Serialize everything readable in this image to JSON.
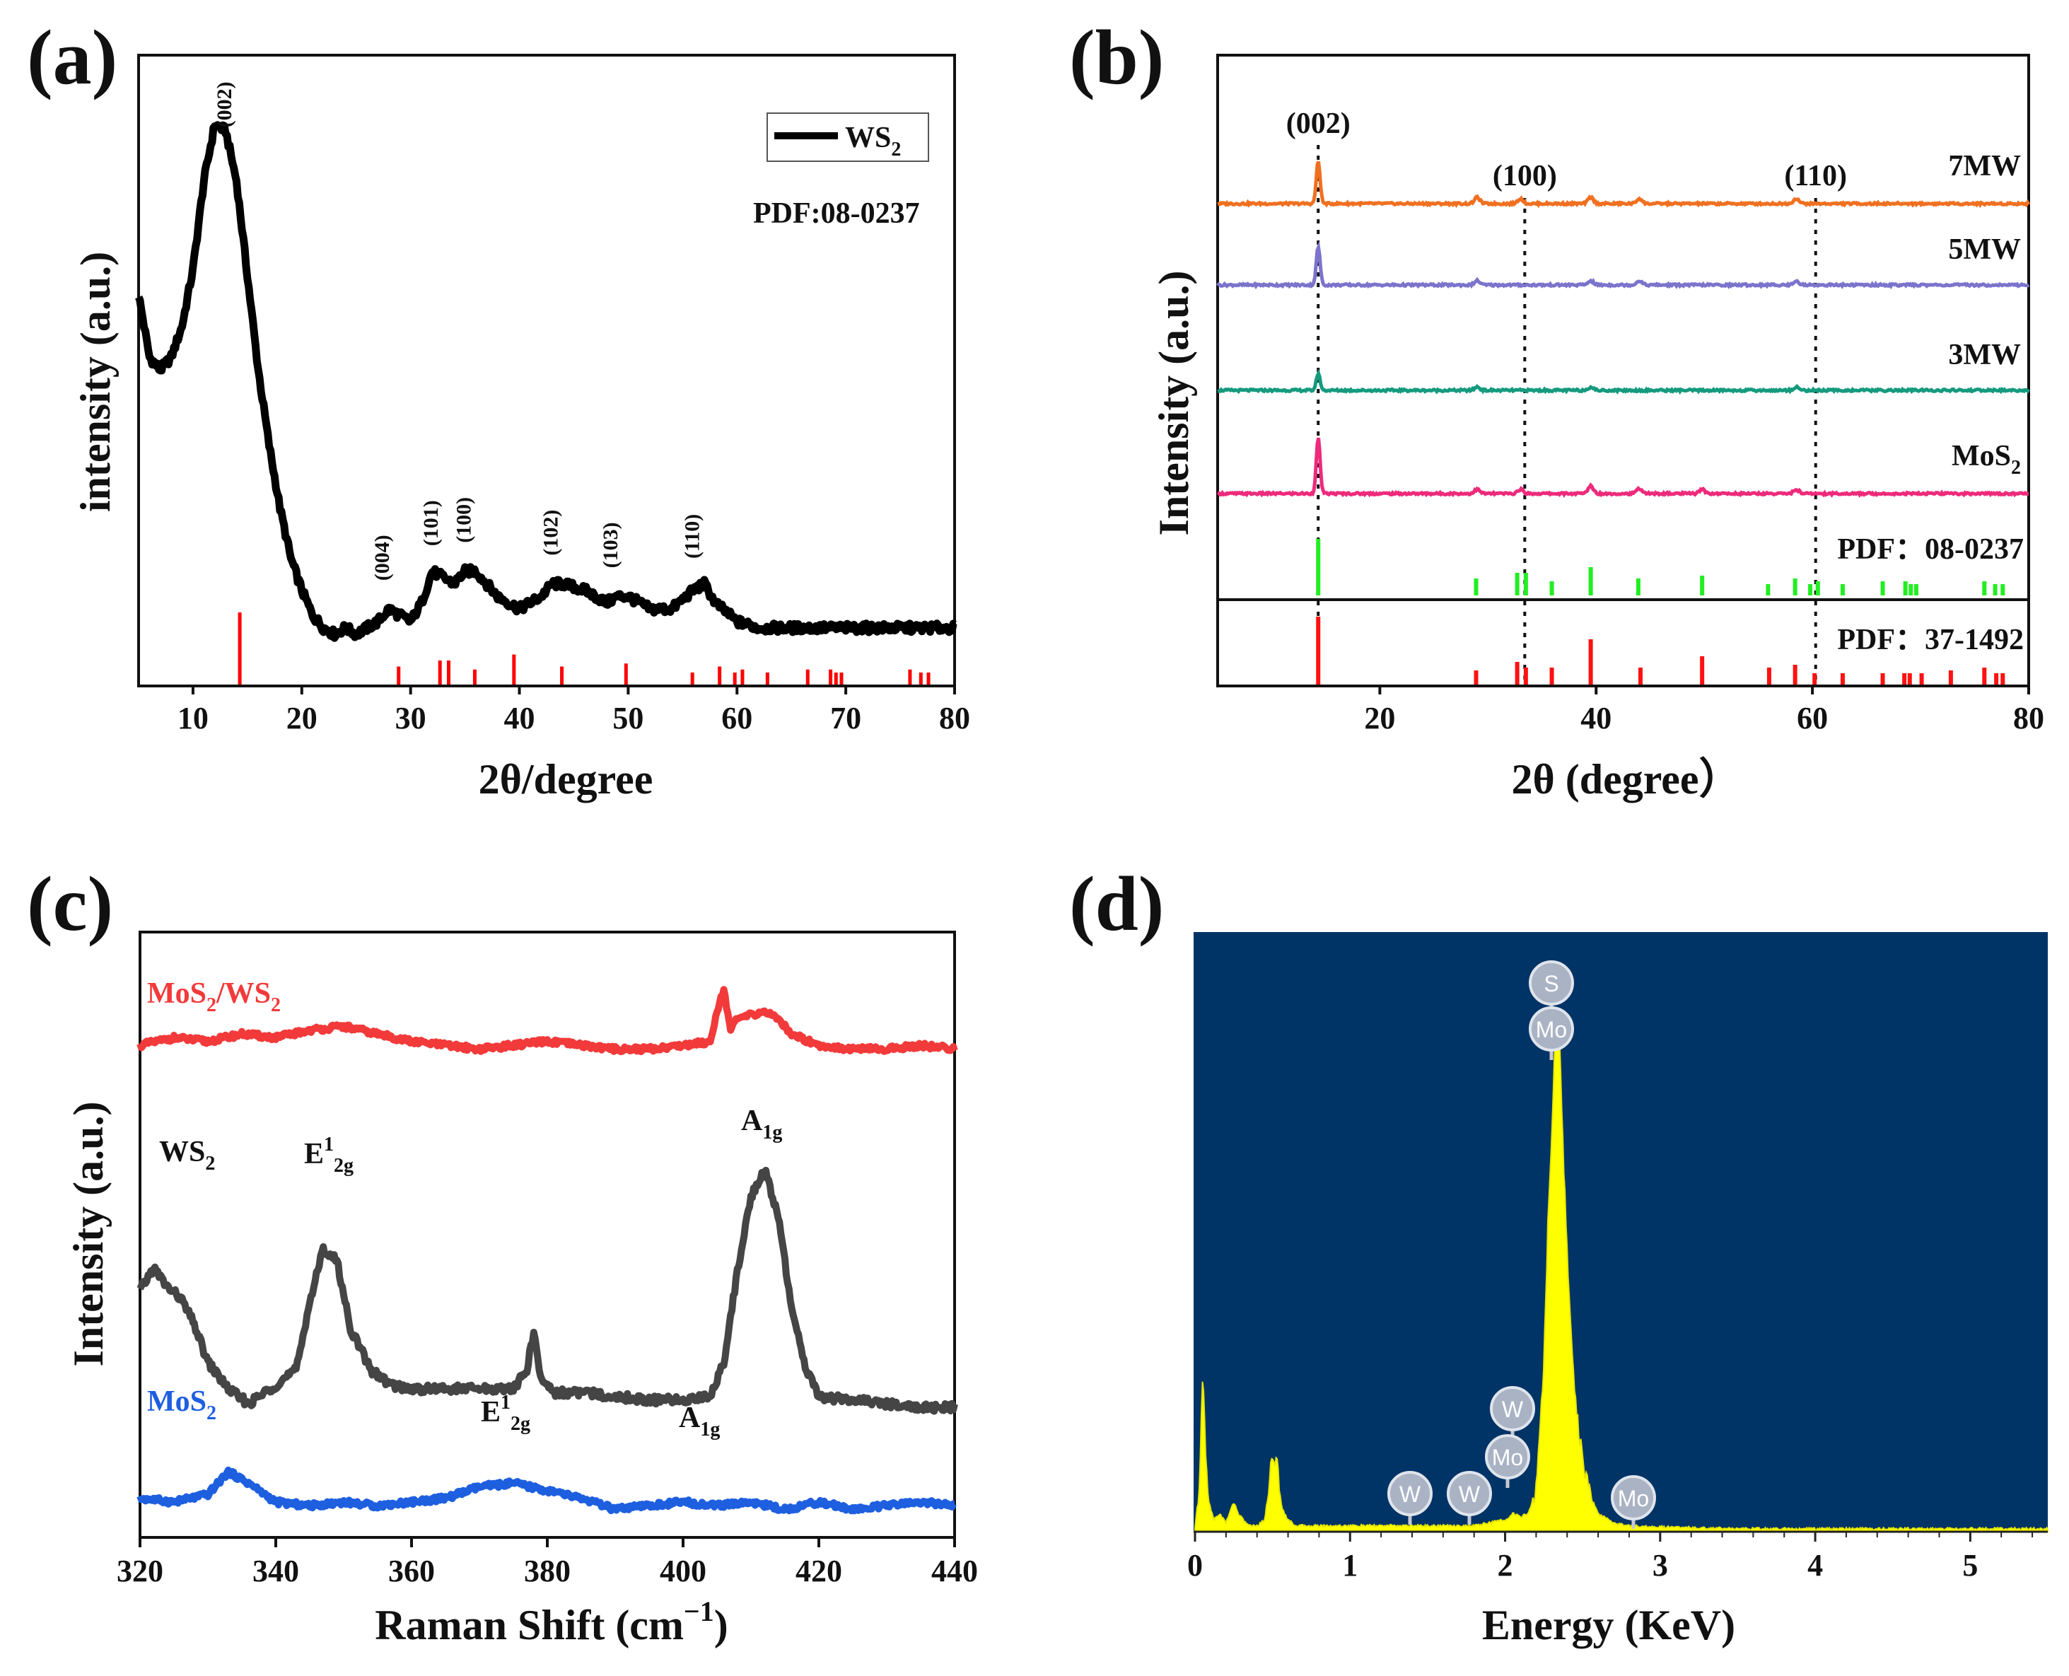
{
  "panels": {
    "a": {
      "label": "(a)"
    },
    "b": {
      "label": "(b)"
    },
    "c": {
      "label": "(c)"
    },
    "d": {
      "label": "(d)"
    }
  },
  "chart_data": [
    {
      "panel": "a",
      "type": "line",
      "title": "",
      "xlabel": "2θ/degree",
      "ylabel": "intensity (a.u.)",
      "xlim": [
        5,
        80
      ],
      "xticks": [
        10,
        20,
        30,
        40,
        50,
        60,
        70,
        80
      ],
      "ylim": [
        0,
        100
      ],
      "legend": {
        "label": "WS",
        "sub": "2",
        "position": "top-right"
      },
      "annotation": "PDF:08-0237",
      "series": [
        {
          "name": "WS2",
          "color": "#000000",
          "x": [
            5,
            6,
            7,
            8,
            9,
            10,
            11,
            12,
            13,
            14,
            15,
            16,
            17,
            18,
            19,
            20,
            21,
            22,
            23,
            24,
            25,
            26,
            27,
            28,
            29,
            30,
            31,
            32,
            33,
            34,
            35,
            36,
            37,
            38,
            40,
            42,
            43,
            44,
            46,
            48,
            49,
            50,
            52,
            54,
            56,
            57,
            58,
            60,
            62,
            65,
            68,
            70,
            72,
            74,
            76,
            78,
            80
          ],
          "y": [
            62,
            52,
            50,
            52,
            57,
            66,
            80,
            89,
            88,
            80,
            65,
            50,
            38,
            28,
            20,
            15,
            11,
            9,
            8,
            9,
            8,
            9,
            10,
            12,
            11,
            10,
            13,
            18,
            17,
            16,
            18,
            18,
            16,
            14,
            12,
            14,
            16,
            16,
            15,
            13,
            14,
            14,
            12,
            12,
            15,
            16,
            13,
            10,
            9,
            9,
            9,
            9,
            9,
            9,
            9,
            9,
            9
          ]
        }
      ],
      "peaks": [
        {
          "label": "(002)",
          "x": 13.5
        },
        {
          "label": "(004)",
          "x": 28.0
        },
        {
          "label": "(101)",
          "x": 32.5
        },
        {
          "label": "(100)",
          "x": 35.5
        },
        {
          "label": "(102)",
          "x": 43.5
        },
        {
          "label": "(103)",
          "x": 49.0
        },
        {
          "label": "(110)",
          "x": 56.5
        }
      ],
      "reference_lines": {
        "color": "#ff0000",
        "x": [
          14.3,
          28.9,
          32.7,
          33.5,
          35.9,
          39.5,
          43.9,
          49.8,
          55.9,
          58.4,
          59.8,
          60.5,
          62.8,
          66.5,
          68.6,
          69.1,
          69.6,
          75.9,
          76.9,
          77.6
        ],
        "h": [
          12,
          3,
          4,
          4,
          2.5,
          5,
          3,
          3.5,
          2,
          3,
          2,
          2.5,
          2,
          2.5,
          2.5,
          2,
          2,
          2.5,
          2,
          2
        ]
      }
    },
    {
      "panel": "b",
      "type": "line",
      "title": "",
      "xlabel": "2θ (degree）",
      "ylabel": "Intensity (a.u.)",
      "xlim": [
        5,
        80
      ],
      "xticks": [
        20,
        40,
        60,
        80
      ],
      "peak_labels": [
        {
          "label": "(002)",
          "x": 14.3
        },
        {
          "label": "(100)",
          "x": 33.4
        },
        {
          "label": "(110)",
          "x": 60.3
        }
      ],
      "series": [
        {
          "name": "7MW",
          "color": "#f07020",
          "peak_height": 10,
          "minor": [
            [
              29,
              1.5
            ],
            [
              33,
              1.2
            ],
            [
              39.5,
              1.5
            ],
            [
              44,
              1.2
            ],
            [
              58.5,
              1.2
            ]
          ]
        },
        {
          "name": "5MW",
          "color": "#7b74cc",
          "peak_height": 9,
          "minor": [
            [
              29,
              1
            ],
            [
              39.5,
              1
            ],
            [
              44,
              1
            ],
            [
              58.5,
              1
            ]
          ]
        },
        {
          "name": "3MW",
          "color": "#159a7e",
          "peak_height": 4,
          "minor": [
            [
              29,
              0.8
            ],
            [
              39.5,
              0.8
            ],
            [
              58.5,
              0.8
            ]
          ]
        },
        {
          "name": "MoS",
          "sub": "2",
          "color": "#ee2a7b",
          "peak_height": 13,
          "minor": [
            [
              29,
              1
            ],
            [
              33,
              1
            ],
            [
              39.5,
              1.8
            ],
            [
              44,
              1.2
            ],
            [
              49.8,
              1
            ],
            [
              58.5,
              1
            ]
          ]
        }
      ],
      "references": [
        {
          "name": "PDF：08-0237",
          "color": "#22ee22",
          "x": [
            14.3,
            28.9,
            32.7,
            33.5,
            35.9,
            39.5,
            43.9,
            49.8,
            55.9,
            58.4,
            59.8,
            60.5,
            62.8,
            66.5,
            68.6,
            69.1,
            69.6,
            75.9,
            76.9,
            77.6
          ],
          "h": [
            10,
            3,
            4,
            4,
            2.5,
            5,
            3,
            3.5,
            2,
            3,
            2,
            2.5,
            2,
            2.5,
            2.5,
            2,
            2,
            2.5,
            2,
            2
          ]
        },
        {
          "name": "PDF：37-1492",
          "color": "#ff1111",
          "x": [
            14.3,
            28.9,
            32.7,
            33.5,
            35.9,
            39.5,
            44.1,
            49.8,
            56.0,
            58.4,
            60.2,
            62.8,
            66.5,
            68.5,
            69.0,
            70.1,
            72.8,
            75.9,
            77.0,
            77.6
          ],
          "h": [
            12,
            2.5,
            4,
            3,
            3,
            8,
            3,
            5,
            3,
            3.5,
            2,
            2,
            2,
            2,
            2,
            2,
            2.5,
            3,
            2,
            2
          ]
        }
      ]
    },
    {
      "panel": "c",
      "type": "line",
      "title": "",
      "xlabel": "Raman Shift (cm",
      "xlabel_sup": "−1",
      "xlabel_end": ")",
      "ylabel": "Intensity (a.u.)",
      "xlim": [
        320,
        440
      ],
      "xticks": [
        320,
        340,
        360,
        380,
        400,
        420,
        440
      ],
      "series": [
        {
          "name": "MoS",
          "sub": "2",
          "color": "#1e5fe0",
          "x": [
            320,
            325,
            330,
            333,
            336,
            340,
            345,
            350,
            355,
            360,
            365,
            370,
            375,
            380,
            385,
            390,
            395,
            400,
            405,
            410,
            415,
            420,
            425,
            430,
            435,
            440
          ],
          "y": [
            10,
            9,
            11,
            17,
            14,
            9,
            8,
            9,
            8,
            9,
            10,
            13,
            14,
            12,
            10,
            7,
            8,
            9,
            8,
            9,
            7,
            9,
            7,
            8,
            9,
            8
          ]
        },
        {
          "name": "WS",
          "sub": "2",
          "color": "#454545",
          "x": [
            320,
            322,
            324,
            326,
            328,
            330,
            333,
            336,
            340,
            343,
            345,
            347,
            349,
            351,
            354,
            357,
            360,
            365,
            370,
            375,
            377,
            378,
            379,
            381,
            385,
            390,
            395,
            400,
            404,
            406,
            408,
            410,
            412,
            414,
            416,
            418,
            420,
            425,
            430,
            435,
            440
          ],
          "y": [
            65,
            71,
            66,
            63,
            56,
            46,
            39,
            35,
            40,
            44,
            62,
            76,
            73,
            55,
            44,
            40,
            39,
            39,
            39,
            39,
            44,
            54,
            42,
            38,
            38,
            37,
            36,
            36,
            37,
            46,
            70,
            90,
            97,
            85,
            60,
            45,
            37,
            36,
            35,
            34,
            34
          ]
        },
        {
          "name": "MoS2/WS2",
          "color": "#f23a3a",
          "x": [
            320,
            325,
            330,
            335,
            340,
            345,
            350,
            355,
            360,
            365,
            370,
            375,
            380,
            385,
            390,
            395,
            400,
            404,
            405,
            406,
            407,
            408,
            410,
            412,
            414,
            416,
            420,
            425,
            430,
            435,
            440
          ],
          "y": [
            130,
            132,
            131,
            133,
            132,
            134,
            135,
            133,
            131,
            130,
            129,
            130,
            131,
            130,
            129,
            129,
            130,
            131,
            139,
            145,
            134,
            137,
            138,
            139,
            137,
            133,
            130,
            129,
            129,
            130,
            129
          ]
        }
      ],
      "series_labels": [
        {
          "text": "MoS",
          "sub": "2",
          "text2": "/WS",
          "sub2": "2",
          "color": "#f23a3a"
        },
        {
          "text": "WS",
          "sub": "2",
          "color": "#111111"
        },
        {
          "text": "MoS",
          "sub": "2",
          "color": "#1e5fe0"
        }
      ],
      "peak_labels": [
        {
          "label": "A",
          "sub": "1g",
          "series": "WS2"
        },
        {
          "label": "E",
          "sup": "1",
          "sub": "2g",
          "series": "WS2"
        },
        {
          "label": "E",
          "sup": "1",
          "sub": "2g",
          "series": "MoS2"
        },
        {
          "label": "A",
          "sub": "1g",
          "series": "MoS2"
        }
      ]
    },
    {
      "panel": "d",
      "type": "area",
      "title": "",
      "xlabel": "Energy (KeV)",
      "xlim": [
        0,
        5.5
      ],
      "xticks": [
        0,
        1,
        2,
        3,
        4,
        5
      ],
      "background": "#003366",
      "fill": "#ffff00",
      "x": [
        0,
        0.03,
        0.05,
        0.07,
        0.09,
        0.12,
        0.16,
        0.2,
        0.25,
        0.28,
        0.31,
        0.35,
        0.4,
        0.45,
        0.5,
        0.53,
        0.56,
        0.6,
        0.65,
        0.8,
        1.0,
        1.4,
        1.8,
        2.0,
        2.05,
        2.1,
        2.15,
        2.2,
        2.25,
        2.28,
        2.31,
        2.33,
        2.35,
        2.38,
        2.42,
        2.46,
        2.5,
        2.55,
        2.6,
        2.7,
        2.8,
        3.0,
        3.5,
        4.0,
        4.5,
        5.0,
        5.5
      ],
      "y": [
        0.5,
        8,
        27,
        12,
        5,
        2,
        3,
        1.5,
        5,
        3,
        2,
        1,
        1,
        2,
        13,
        11,
        4,
        2,
        1,
        1,
        1,
        1,
        1,
        2,
        3,
        2.5,
        3,
        7,
        28,
        55,
        72,
        88,
        82,
        60,
        35,
        20,
        12,
        6,
        3,
        1.5,
        1,
        0.8,
        0.5,
        0.5,
        0.5,
        0.5,
        0.5
      ],
      "element_markers": [
        "S",
        "Mo",
        "W",
        "Mo",
        "W",
        "W",
        "Mo"
      ]
    }
  ]
}
